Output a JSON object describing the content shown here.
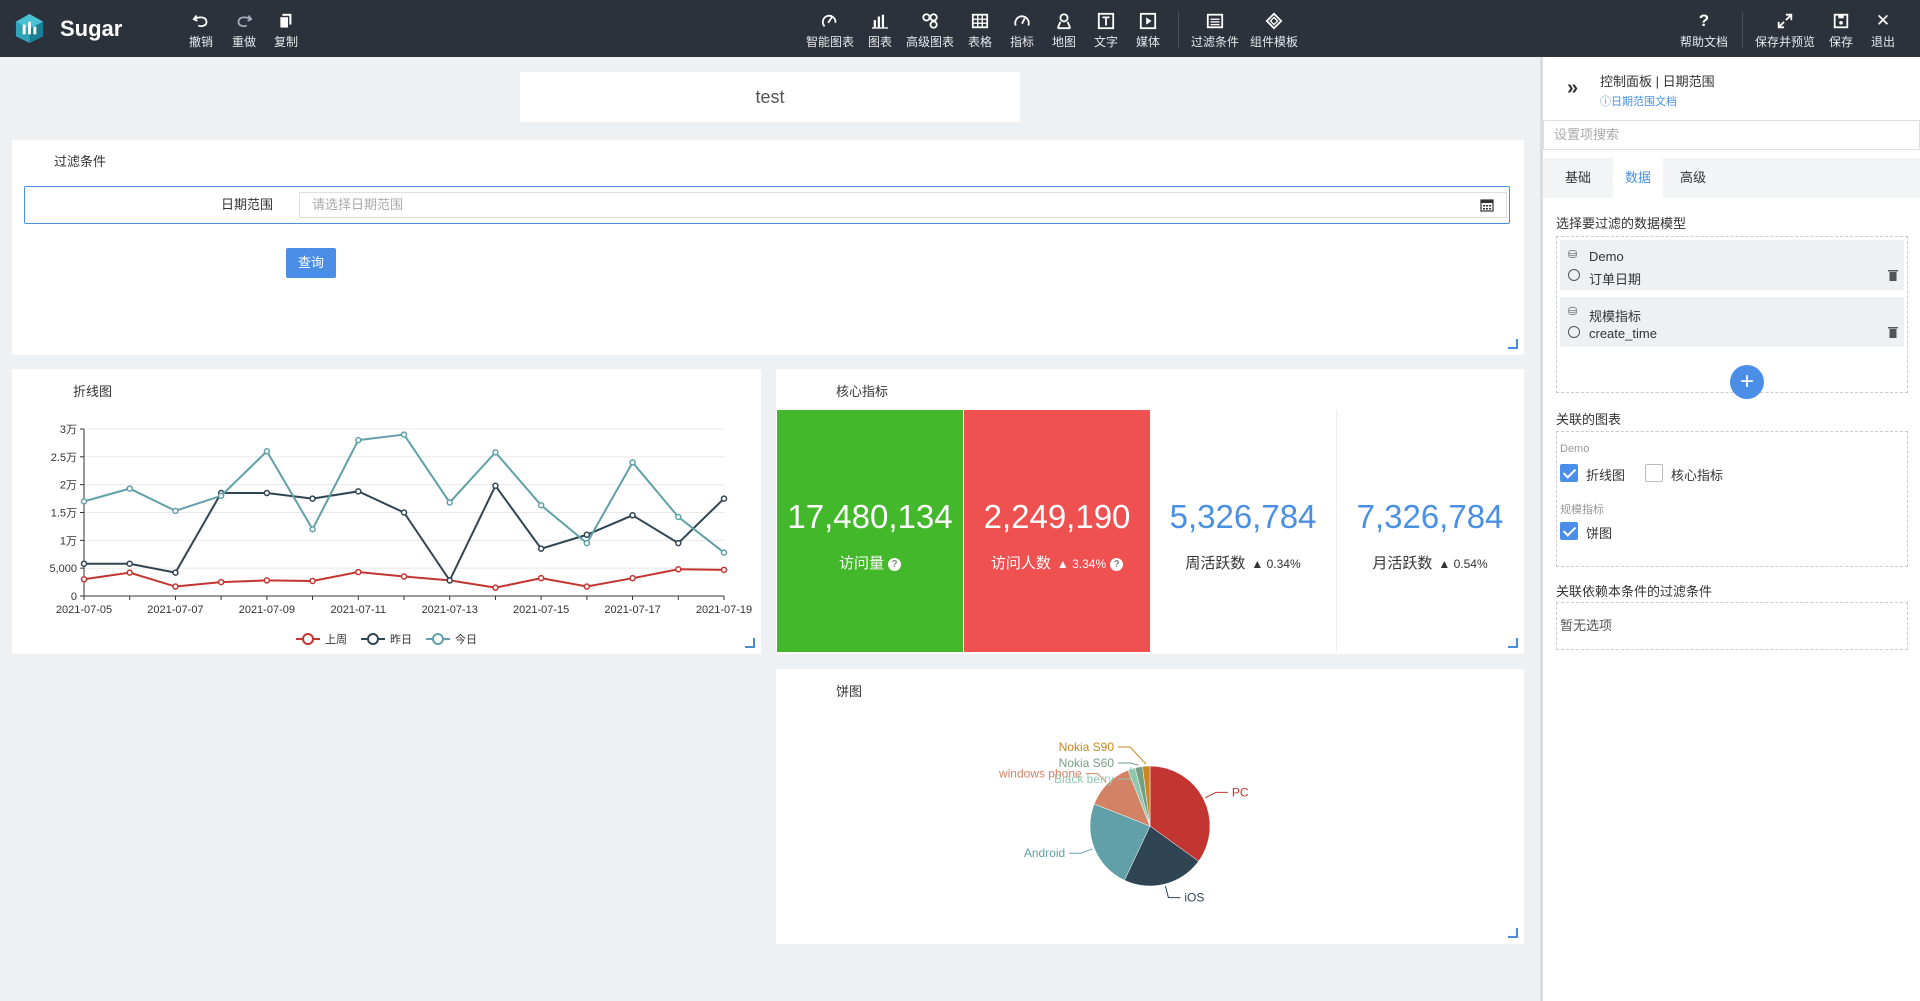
{
  "app": {
    "brand": "Sugar"
  },
  "toolbar": {
    "left": [
      {
        "name": "undo-button",
        "icon": "undo-icon",
        "label": "撤销"
      },
      {
        "name": "redo-button",
        "icon": "redo-icon",
        "label": "重做"
      },
      {
        "name": "copy-button",
        "icon": "copy-icon",
        "label": "复制"
      }
    ],
    "center": [
      {
        "name": "smart-chart-button",
        "icon": "smart-chart-icon",
        "label": "智能图表"
      },
      {
        "name": "chart-button",
        "icon": "bar-chart-icon",
        "label": "图表"
      },
      {
        "name": "advanced-chart-button",
        "icon": "advanced-chart-icon",
        "label": "高级图表"
      },
      {
        "name": "table-button",
        "icon": "table-icon",
        "label": "表格"
      },
      {
        "name": "indicator-button",
        "icon": "gauge-icon",
        "label": "指标"
      },
      {
        "name": "map-button",
        "icon": "map-pin-icon",
        "label": "地图"
      },
      {
        "name": "text-button",
        "icon": "text-icon",
        "label": "文字"
      },
      {
        "name": "media-button",
        "icon": "media-icon",
        "label": "媒体"
      },
      {
        "name": "filter-button",
        "icon": "filter-icon",
        "label": "过滤条件"
      },
      {
        "name": "component-template-button",
        "icon": "template-icon",
        "label": "组件模板"
      }
    ],
    "right": [
      {
        "name": "help-doc-button",
        "icon": "help-icon",
        "label": "帮助文档"
      },
      {
        "name": "save-preview-button",
        "icon": "expand-icon",
        "label": "保存并预览"
      },
      {
        "name": "save-button",
        "icon": "save-icon",
        "label": "保存"
      },
      {
        "name": "exit-button",
        "icon": "close-icon",
        "label": "退出"
      }
    ]
  },
  "canvas": {
    "title_text": "test",
    "filter_panel": {
      "title": "过滤条件",
      "date_label": "日期范围",
      "date_placeholder": "请选择日期范围",
      "query_label": "查询"
    },
    "line_panel_title": "折线图",
    "core_panel_title": "核心指标",
    "pie_panel_title": "饼图",
    "kpis": [
      {
        "value": "17,480,134",
        "label": "访问量",
        "change": "",
        "help": true,
        "style": "green"
      },
      {
        "value": "2,249,190",
        "label": "访问人数",
        "change": "▲ 3.34%",
        "help": true,
        "style": "red"
      },
      {
        "value": "5,326,784",
        "label": "周活跃数",
        "change": "▲ 0.34%",
        "help": false,
        "style": "white"
      },
      {
        "value": "7,326,784",
        "label": "月活跃数",
        "change": "▲ 0.54%",
        "help": false,
        "style": "white"
      }
    ]
  },
  "chart_data": [
    {
      "type": "line",
      "x": [
        "2021-07-05",
        "2021-07-06",
        "2021-07-07",
        "2021-07-08",
        "2021-07-09",
        "2021-07-10",
        "2021-07-11",
        "2021-07-12",
        "2021-07-13",
        "2021-07-14",
        "2021-07-15",
        "2021-07-16",
        "2021-07-17",
        "2021-07-18",
        "2021-07-19"
      ],
      "x_tick_labels": [
        "2021-07-05",
        "2021-07-07",
        "2021-07-09",
        "2021-07-11",
        "2021-07-13",
        "2021-07-15",
        "2021-07-17",
        "2021-07-19"
      ],
      "y_tick_labels": [
        "0",
        "5,000",
        "1万",
        "1.5万",
        "2万",
        "2.5万",
        "3万"
      ],
      "ylim": [
        0,
        30000
      ],
      "series": [
        {
          "name": "上周",
          "color": "#c23531",
          "values": [
            3000,
            4200,
            1700,
            2500,
            2800,
            2700,
            4300,
            3500,
            2800,
            1500,
            3200,
            1700,
            3200,
            4800,
            4700
          ]
        },
        {
          "name": "昨日",
          "color": "#2f4554",
          "values": [
            5800,
            5800,
            4200,
            18500,
            18500,
            17500,
            18800,
            15000,
            2800,
            19800,
            8500,
            11000,
            14500,
            9500,
            17500
          ]
        },
        {
          "name": "今日",
          "color": "#61a0a8",
          "values": [
            17000,
            19300,
            15300,
            18000,
            26000,
            12000,
            28000,
            29000,
            16800,
            25800,
            16300,
            9500,
            24000,
            14200,
            7800
          ]
        }
      ],
      "legend_position": "bottom-center",
      "grid": true
    },
    {
      "type": "pie",
      "slices": [
        {
          "label": "PC",
          "value": 35,
          "color": "#c23531"
        },
        {
          "label": "iOS",
          "value": 22,
          "color": "#2f4554"
        },
        {
          "label": "Android",
          "value": 24,
          "color": "#61a0a8"
        },
        {
          "label": "windows phone",
          "value": 13,
          "color": "#d48265"
        },
        {
          "label": "Black berry",
          "value": 2,
          "color": "#91c7ae"
        },
        {
          "label": "Nokia S60",
          "value": 2,
          "color": "#749f83"
        },
        {
          "label": "Nokia S90",
          "value": 2,
          "color": "#ca8622"
        }
      ]
    }
  ],
  "sidebar": {
    "title": "控制面板 | 日期范围",
    "doc_link": "ⓘ日期范围文档",
    "search_placeholder": "设置项搜索",
    "tabs": [
      {
        "label": "基础",
        "active": false
      },
      {
        "label": "数据",
        "active": true
      },
      {
        "label": "高级",
        "active": false
      }
    ],
    "models_section": "选择要过滤的数据模型",
    "models": [
      {
        "name": "Demo",
        "field": "订单日期"
      },
      {
        "name": "规模指标",
        "field": "create_time"
      }
    ],
    "linked_section": "关联的图表",
    "linked_groups": [
      {
        "group": "Demo",
        "items": [
          {
            "label": "折线图",
            "checked": true
          },
          {
            "label": "核心指标",
            "checked": false
          }
        ]
      },
      {
        "group": "规模指标",
        "items": [
          {
            "label": "饼图",
            "checked": true
          }
        ]
      }
    ],
    "depend_section": "关联依赖本条件的过滤条件",
    "depend_empty": "暂无选项"
  }
}
